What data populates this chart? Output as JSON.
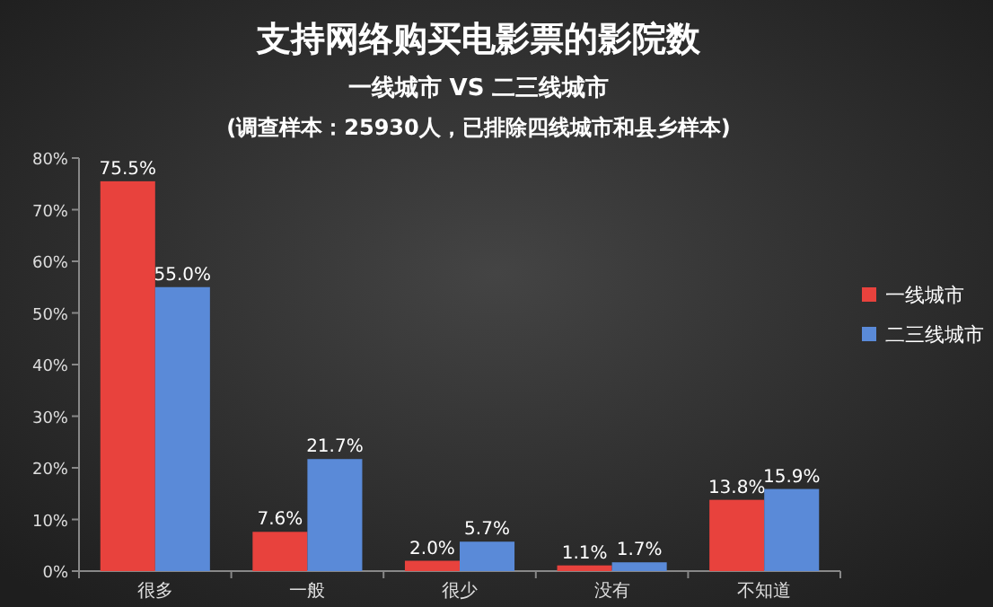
{
  "chart_data": {
    "type": "bar",
    "title": "支持网络购买电影票的影院数",
    "subtitle": "一线城市 VS 二三线城市",
    "annotations": [
      "(调查样本：25930人，已排除四线城市和县乡样本)"
    ],
    "categories": [
      "很多",
      "一般",
      "很少",
      "没有",
      "不知道"
    ],
    "series": [
      {
        "name": "一线城市",
        "color": "#e8423d",
        "values": [
          75.5,
          7.6,
          2.0,
          1.1,
          13.8
        ],
        "value_labels": [
          "75.5%",
          "7.6%",
          "2.0%",
          "1.1%",
          "13.8%"
        ]
      },
      {
        "name": "二三线城市",
        "color": "#5a8ad8",
        "values": [
          55.0,
          21.7,
          5.7,
          1.7,
          15.9
        ],
        "value_labels": [
          "55.0%",
          "21.7%",
          "5.7%",
          "1.7%",
          "15.9%"
        ]
      }
    ],
    "ylim": [
      0,
      80
    ],
    "yticks": [
      {
        "value": 0,
        "label": "0%"
      },
      {
        "value": 10,
        "label": "10%"
      },
      {
        "value": 20,
        "label": "20%"
      },
      {
        "value": 30,
        "label": "30%"
      },
      {
        "value": 40,
        "label": "40%"
      },
      {
        "value": 50,
        "label": "50%"
      },
      {
        "value": 60,
        "label": "60%"
      },
      {
        "value": 70,
        "label": "70%"
      },
      {
        "value": 80,
        "label": "80%"
      }
    ],
    "legend": "right",
    "grid": false
  }
}
